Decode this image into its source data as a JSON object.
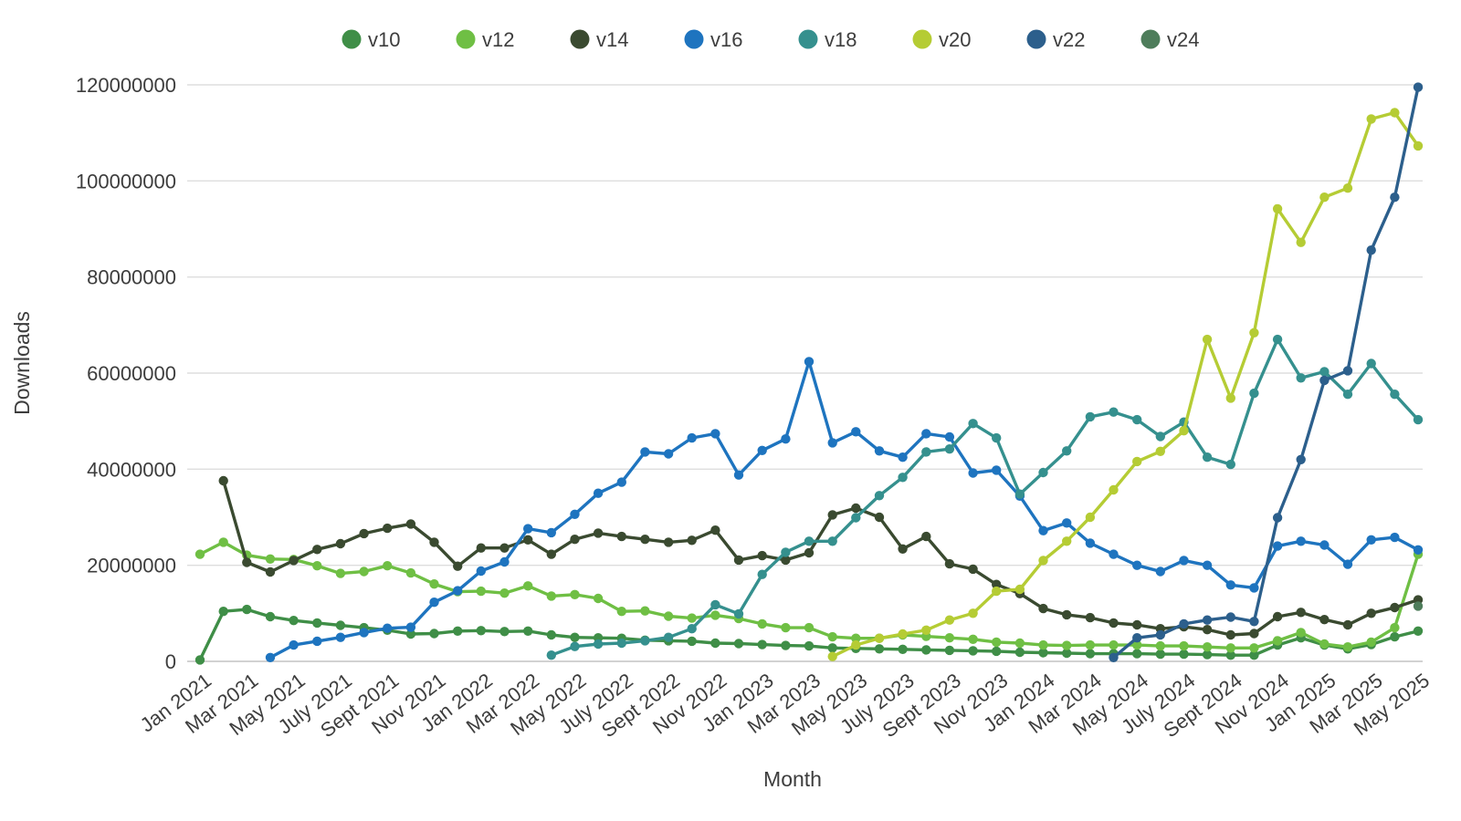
{
  "chart_data": {
    "type": "line",
    "title": "",
    "xlabel": "Month",
    "ylabel": "Downloads",
    "ylim": [
      0,
      120000000
    ],
    "grid": true,
    "legend_position": "top",
    "y_ticks": [
      0,
      20000000,
      40000000,
      60000000,
      80000000,
      100000000,
      120000000
    ],
    "x_tick_labels": [
      "Jan 2021",
      "Mar 2021",
      "May 2021",
      "July 2021",
      "Sept 2021",
      "Nov 2021",
      "Jan 2022",
      "Mar 2022",
      "May 2022",
      "July 2022",
      "Sept 2022",
      "Nov 2022",
      "Jan 2023",
      "Mar 2023",
      "May 2023",
      "July 2023",
      "Sept 2023",
      "Nov 2023",
      "Jan 2024",
      "Mar 2024",
      "May 2024",
      "July 2024",
      "Sept 2024",
      "Nov 2024",
      "Jan 2025",
      "Mar 2025",
      "May 2025"
    ],
    "x_range_months": 53,
    "series": [
      {
        "name": "v10",
        "color": "#3f8e47",
        "start_month_index": 0,
        "values": [
          300000,
          10400000,
          10800000,
          9300000,
          8500000,
          8000000,
          7500000,
          7000000,
          6500000,
          5700000,
          5800000,
          6300000,
          6400000,
          6200000,
          6300000,
          5500000,
          5000000,
          4900000,
          4800000,
          4400000,
          4300000,
          4200000,
          3800000,
          3700000,
          3500000,
          3300000,
          3200000,
          2800000,
          2700000,
          2600000,
          2500000,
          2400000,
          2300000,
          2200000,
          2100000,
          1900000,
          1800000,
          1700000,
          1600000,
          1600000,
          1600000,
          1500000,
          1500000,
          1400000,
          1300000,
          1300000,
          3400000,
          4900000,
          3400000,
          2600000,
          3500000,
          5100000,
          6300000
        ]
      },
      {
        "name": "v12",
        "color": "#6fbf44",
        "start_month_index": 0,
        "values": [
          22300000,
          24800000,
          22100000,
          21300000,
          21200000,
          19900000,
          18300000,
          18700000,
          19900000,
          18400000,
          16100000,
          14500000,
          14600000,
          14200000,
          15700000,
          13600000,
          13900000,
          13100000,
          10400000,
          10500000,
          9400000,
          9000000,
          9600000,
          8900000,
          7800000,
          7000000,
          7000000,
          5100000,
          4800000,
          4800000,
          5500000,
          5200000,
          4900000,
          4600000,
          4000000,
          3800000,
          3400000,
          3300000,
          3400000,
          3400000,
          3400000,
          3200000,
          3200000,
          3000000,
          2800000,
          2800000,
          4300000,
          6000000,
          3600000,
          3000000,
          4000000,
          7000000,
          22300000
        ]
      },
      {
        "name": "v14",
        "color": "#3a4a30",
        "start_month_index": 1,
        "values": [
          37600000,
          20600000,
          18600000,
          21000000,
          23300000,
          24500000,
          26600000,
          27700000,
          28600000,
          24800000,
          19800000,
          23600000,
          23600000,
          25300000,
          22300000,
          25400000,
          26700000,
          26000000,
          25400000,
          24800000,
          25200000,
          27300000,
          21100000,
          22000000,
          21100000,
          22600000,
          30500000,
          31900000,
          30000000,
          23400000,
          26000000,
          20300000,
          19200000,
          16000000,
          14100000,
          11000000,
          9700000,
          9100000,
          8000000,
          7600000,
          6800000,
          7200000,
          6600000,
          5500000,
          5800000,
          9300000,
          10200000,
          8700000,
          7600000,
          10000000,
          11200000,
          12800000
        ]
      },
      {
        "name": "v16",
        "color": "#1e74bf",
        "start_month_index": 3,
        "values": [
          800000,
          3400000,
          4200000,
          5000000,
          6000000,
          6900000,
          7100000,
          12300000,
          14700000,
          18800000,
          20700000,
          27600000,
          26800000,
          30600000,
          35000000,
          37300000,
          43600000,
          43200000,
          46500000,
          47400000,
          38800000,
          43900000,
          46300000,
          62400000,
          45500000,
          47800000,
          43800000,
          42500000,
          47400000,
          46700000,
          39200000,
          39800000,
          34400000,
          27200000,
          28800000,
          24600000,
          22300000,
          20000000,
          18700000,
          21000000,
          20000000,
          15900000,
          15300000,
          24000000,
          25000000,
          24200000,
          20200000,
          25300000,
          25800000,
          23200000
        ]
      },
      {
        "name": "v18",
        "color": "#35908e",
        "start_month_index": 15,
        "values": [
          1300000,
          3100000,
          3600000,
          3800000,
          4300000,
          5000000,
          6800000,
          11800000,
          9900000,
          18100000,
          22700000,
          25000000,
          25000000,
          29900000,
          34500000,
          38300000,
          43600000,
          44200000,
          49500000,
          46500000,
          34800000,
          39300000,
          43800000,
          50900000,
          51900000,
          50300000,
          46800000,
          49800000,
          42500000,
          41000000,
          55800000,
          67000000,
          59000000,
          60300000,
          55600000,
          62000000,
          55600000,
          50300000
        ]
      },
      {
        "name": "v20",
        "color": "#b5cc34",
        "start_month_index": 27,
        "values": [
          1000000,
          3400000,
          4800000,
          5700000,
          6500000,
          8600000,
          10000000,
          14600000,
          15000000,
          21000000,
          25000000,
          30000000,
          35700000,
          41600000,
          43700000,
          48000000,
          67000000,
          54800000,
          68400000,
          94200000,
          87200000,
          96600000,
          98500000,
          112900000,
          114200000,
          107300000
        ]
      },
      {
        "name": "v22",
        "color": "#2c5f8c",
        "start_month_index": 39,
        "values": [
          800000,
          4900000,
          5500000,
          7800000,
          8600000,
          9200000,
          8300000,
          29900000,
          42000000,
          58500000,
          60500000,
          85600000,
          96600000,
          119500000
        ]
      },
      {
        "name": "v24",
        "color": "#4e7d5b",
        "start_month_index": 52,
        "values": [
          11500000
        ]
      }
    ]
  }
}
